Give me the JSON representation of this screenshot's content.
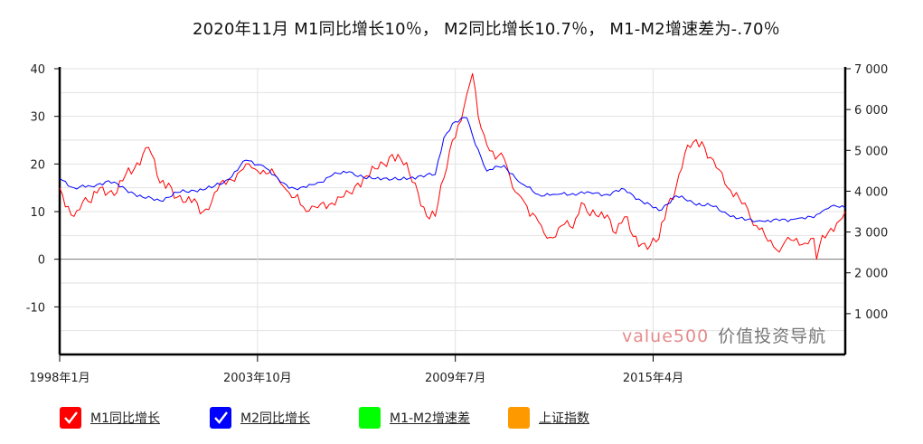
{
  "title": "2020年11月    M1同比增长10％，  M2同比增长10.7％，  M1-M2增速差为-.70％",
  "watermark": {
    "brand": "value500",
    "name": "价值投资导航"
  },
  "legend": [
    {
      "label": "M1同比增长",
      "color": "#ff0000",
      "checked": true
    },
    {
      "label": "M2同比增长",
      "color": "#0000ff",
      "checked": true
    },
    {
      "label": "M1-M2增速差",
      "color": "#00ff00",
      "checked": false
    },
    {
      "label": "上证指数",
      "color": "#ff9900",
      "checked": false
    }
  ],
  "chart_data": {
    "type": "line",
    "x_range": [
      "1998-01",
      "2020-11"
    ],
    "x_ticks": [
      "1998年1月",
      "2003年10月",
      "2009年7月",
      "2015年4月"
    ],
    "y_left": {
      "ticks": [
        "40",
        "30",
        "20",
        "10",
        "0",
        "-10"
      ],
      "lim": [
        -20,
        40
      ]
    },
    "y_right": {
      "ticks": [
        "7 000",
        "6 000",
        "5 000",
        "4 000",
        "3 000",
        "2 000",
        "1 000"
      ],
      "lim": [
        0,
        7000
      ]
    },
    "series": [
      {
        "name": "M1同比增长",
        "color": "#ff0000",
        "points": [
          [
            "1998-01",
            15
          ],
          [
            "1998-03",
            11
          ],
          [
            "1998-06",
            9
          ],
          [
            "1998-09",
            12
          ],
          [
            "1998-12",
            11.9
          ],
          [
            "1999-03",
            15
          ],
          [
            "1999-06",
            14
          ],
          [
            "1999-09",
            14
          ],
          [
            "1999-12",
            17.7
          ],
          [
            "2000-03",
            19
          ],
          [
            "2000-06",
            22
          ],
          [
            "2000-08",
            23.5
          ],
          [
            "2000-12",
            16
          ],
          [
            "2001-03",
            16
          ],
          [
            "2001-06",
            13
          ],
          [
            "2001-09",
            12
          ],
          [
            "2001-12",
            12.7
          ],
          [
            "2002-03",
            10
          ],
          [
            "2002-06",
            12
          ],
          [
            "2002-09",
            16
          ],
          [
            "2002-12",
            16.8
          ],
          [
            "2003-03",
            18
          ],
          [
            "2003-06",
            20
          ],
          [
            "2003-09",
            19
          ],
          [
            "2003-12",
            18.7
          ],
          [
            "2004-03",
            19
          ],
          [
            "2004-06",
            16
          ],
          [
            "2004-09",
            14
          ],
          [
            "2004-12",
            13.6
          ],
          [
            "2005-03",
            10
          ],
          [
            "2005-06",
            11
          ],
          [
            "2005-09",
            12
          ],
          [
            "2005-12",
            11.8
          ],
          [
            "2006-03",
            13
          ],
          [
            "2006-06",
            14
          ],
          [
            "2006-09",
            16
          ],
          [
            "2006-12",
            17.5
          ],
          [
            "2007-03",
            19
          ],
          [
            "2007-06",
            20
          ],
          [
            "2007-09",
            22
          ],
          [
            "2007-12",
            21
          ],
          [
            "2008-03",
            18
          ],
          [
            "2008-06",
            14
          ],
          [
            "2008-09",
            9
          ],
          [
            "2008-12",
            9
          ],
          [
            "2009-03",
            17
          ],
          [
            "2009-06",
            25
          ],
          [
            "2009-09",
            29
          ],
          [
            "2009-11",
            34.6
          ],
          [
            "2010-01",
            39
          ],
          [
            "2010-03",
            30
          ],
          [
            "2010-06",
            24
          ],
          [
            "2010-09",
            21
          ],
          [
            "2010-12",
            21.2
          ],
          [
            "2011-03",
            15
          ],
          [
            "2011-06",
            13
          ],
          [
            "2011-09",
            9
          ],
          [
            "2011-12",
            7.9
          ],
          [
            "2012-03",
            4.4
          ],
          [
            "2012-06",
            4.7
          ],
          [
            "2012-09",
            7.3
          ],
          [
            "2012-12",
            6.5
          ],
          [
            "2013-03",
            11.9
          ],
          [
            "2013-06",
            9.1
          ],
          [
            "2013-09",
            8.9
          ],
          [
            "2013-12",
            9.3
          ],
          [
            "2014-03",
            5.4
          ],
          [
            "2014-06",
            8.9
          ],
          [
            "2014-09",
            4.8
          ],
          [
            "2014-12",
            3.2
          ],
          [
            "2015-03",
            2.9
          ],
          [
            "2015-06",
            4.3
          ],
          [
            "2015-09",
            11.4
          ],
          [
            "2015-12",
            15.2
          ],
          [
            "2016-03",
            22.1
          ],
          [
            "2016-06",
            24.6
          ],
          [
            "2016-09",
            24.7
          ],
          [
            "2016-12",
            21.4
          ],
          [
            "2017-03",
            18.8
          ],
          [
            "2017-06",
            15
          ],
          [
            "2017-09",
            14
          ],
          [
            "2017-12",
            11.8
          ],
          [
            "2018-03",
            7.1
          ],
          [
            "2018-06",
            6.6
          ],
          [
            "2018-09",
            4
          ],
          [
            "2018-12",
            1.5
          ],
          [
            "2019-03",
            4.6
          ],
          [
            "2019-06",
            4.4
          ],
          [
            "2019-09",
            3.4
          ],
          [
            "2019-12",
            4.4
          ],
          [
            "2020-01",
            0
          ],
          [
            "2020-03",
            5
          ],
          [
            "2020-06",
            6.5
          ],
          [
            "2020-09",
            8.1
          ],
          [
            "2020-11",
            10
          ]
        ]
      },
      {
        "name": "M2同比增长",
        "color": "#0000ff",
        "points": [
          [
            "1998-01",
            17
          ],
          [
            "1998-06",
            15
          ],
          [
            "1998-12",
            15.3
          ],
          [
            "1999-06",
            16.5
          ],
          [
            "1999-12",
            14.7
          ],
          [
            "2000-06",
            13
          ],
          [
            "2000-12",
            12.3
          ],
          [
            "2001-06",
            14
          ],
          [
            "2001-12",
            14.4
          ],
          [
            "2002-06",
            15
          ],
          [
            "2002-12",
            16.8
          ],
          [
            "2003-06",
            20.8
          ],
          [
            "2003-12",
            19.6
          ],
          [
            "2004-06",
            16.2
          ],
          [
            "2004-12",
            14.6
          ],
          [
            "2005-06",
            15.7
          ],
          [
            "2005-12",
            17.6
          ],
          [
            "2006-06",
            18.4
          ],
          [
            "2006-12",
            16.9
          ],
          [
            "2007-06",
            17
          ],
          [
            "2007-12",
            16.7
          ],
          [
            "2008-06",
            17.4
          ],
          [
            "2008-12",
            17.8
          ],
          [
            "2009-03",
            25.5
          ],
          [
            "2009-06",
            28.5
          ],
          [
            "2009-11",
            29.7
          ],
          [
            "2010-01",
            26
          ],
          [
            "2010-06",
            18.5
          ],
          [
            "2010-12",
            19.7
          ],
          [
            "2011-06",
            15.9
          ],
          [
            "2011-12",
            13.6
          ],
          [
            "2012-06",
            13.6
          ],
          [
            "2012-12",
            13.8
          ],
          [
            "2013-06",
            14
          ],
          [
            "2013-12",
            13.6
          ],
          [
            "2014-06",
            14.7
          ],
          [
            "2014-12",
            12.2
          ],
          [
            "2015-06",
            10.2
          ],
          [
            "2015-12",
            13.3
          ],
          [
            "2016-06",
            11.8
          ],
          [
            "2016-12",
            11.3
          ],
          [
            "2017-06",
            9.4
          ],
          [
            "2017-12",
            8.2
          ],
          [
            "2018-06",
            8
          ],
          [
            "2018-12",
            8.1
          ],
          [
            "2019-06",
            8.5
          ],
          [
            "2019-12",
            8.7
          ],
          [
            "2020-03",
            10.1
          ],
          [
            "2020-06",
            11.1
          ],
          [
            "2020-09",
            10.9
          ],
          [
            "2020-11",
            10.7
          ]
        ]
      }
    ]
  }
}
